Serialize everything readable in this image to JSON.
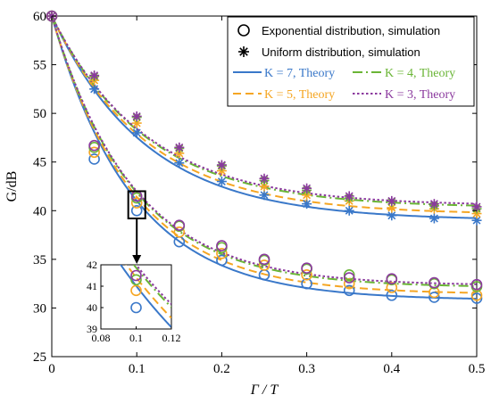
{
  "chart_data": {
    "type": "line",
    "xlabel": "Γ / T",
    "ylabel": "G/dB",
    "xlim": [
      0,
      0.5
    ],
    "ylim": [
      25,
      60
    ],
    "xticks": [
      "0",
      "0.1",
      "0.2",
      "0.3",
      "0.4",
      "0.5"
    ],
    "yticks": [
      "25",
      "30",
      "35",
      "40",
      "45",
      "50",
      "55",
      "60"
    ],
    "grid": false,
    "legend_position": "top-right",
    "colors": {
      "k7": "#3a78c9",
      "k5": "#f5a623",
      "k4": "#6ab536",
      "k3": "#8b3a9e"
    },
    "legend": {
      "exp_label": "Exponential distribution, simulation",
      "uni_label": "Uniform distribution, simulation",
      "k7_label": "K = 7, Theory",
      "k4_label": "K = 4, Theory",
      "k5_label": "K = 5, Theory",
      "k3_label": "K = 3, Theory"
    },
    "theory_series": [
      {
        "key": "k7",
        "distribution": "exponential",
        "style": "solid",
        "start": 60,
        "plateau": 30.8,
        "rate": 10.5
      },
      {
        "key": "k5",
        "distribution": "exponential",
        "style": "dashed",
        "start": 60,
        "plateau": 31.4,
        "rate": 10.5
      },
      {
        "key": "k4",
        "distribution": "exponential",
        "style": "dashdot",
        "start": 60,
        "plateau": 32.1,
        "rate": 10.5
      },
      {
        "key": "k3",
        "distribution": "exponential",
        "style": "dotted",
        "start": 60,
        "plateau": 32.3,
        "rate": 10.5
      },
      {
        "key": "k7",
        "distribution": "uniform",
        "style": "solid",
        "start": 60,
        "plateau": 39.0,
        "rate": 9.0
      },
      {
        "key": "k5",
        "distribution": "uniform",
        "style": "dashed",
        "start": 60,
        "plateau": 39.6,
        "rate": 9.0
      },
      {
        "key": "k4",
        "distribution": "uniform",
        "style": "dashdot",
        "start": 60,
        "plateau": 40.3,
        "rate": 9.0
      },
      {
        "key": "k3",
        "distribution": "uniform",
        "style": "dotted",
        "start": 60,
        "plateau": 40.5,
        "rate": 9.0
      }
    ],
    "simulation_x": [
      0,
      0.05,
      0.1,
      0.15,
      0.2,
      0.25,
      0.3,
      0.35,
      0.4,
      0.45,
      0.5
    ],
    "simulation_series": [
      {
        "key": "k7",
        "distribution": "exponential",
        "marker": "circle",
        "y": [
          60,
          45.3,
          40.0,
          36.8,
          34.9,
          33.4,
          32.5,
          31.8,
          31.3,
          31.1,
          31.0
        ]
      },
      {
        "key": "k5",
        "distribution": "exponential",
        "marker": "circle",
        "y": [
          60,
          46.0,
          40.8,
          37.8,
          35.6,
          34.4,
          33.4,
          32.5,
          32.1,
          31.6,
          31.3
        ]
      },
      {
        "key": "k4",
        "distribution": "exponential",
        "marker": "circle",
        "y": [
          60,
          46.5,
          41.3,
          38.4,
          36.2,
          34.9,
          34.0,
          33.4,
          32.9,
          32.5,
          32.2
        ]
      },
      {
        "key": "k3",
        "distribution": "exponential",
        "marker": "circle",
        "y": [
          60,
          46.7,
          41.5,
          38.5,
          36.4,
          35.0,
          34.1,
          33.1,
          33.0,
          32.6,
          32.4
        ]
      },
      {
        "key": "k7",
        "distribution": "uniform",
        "marker": "star",
        "y": [
          60,
          52.5,
          48.0,
          44.9,
          43.0,
          41.6,
          40.7,
          40.0,
          39.5,
          39.2,
          39.0
        ]
      },
      {
        "key": "k5",
        "distribution": "uniform",
        "marker": "star",
        "y": [
          60,
          53.4,
          49.0,
          45.9,
          44.1,
          42.5,
          41.6,
          41.0,
          40.3,
          40.2,
          39.7
        ]
      },
      {
        "key": "k4",
        "distribution": "uniform",
        "marker": "star",
        "y": [
          60,
          53.8,
          49.6,
          46.4,
          44.6,
          43.1,
          42.1,
          41.3,
          40.9,
          40.5,
          40.2
        ]
      },
      {
        "key": "k3",
        "distribution": "uniform",
        "marker": "star",
        "y": [
          60,
          53.9,
          49.7,
          46.5,
          44.7,
          43.3,
          42.3,
          41.5,
          41.0,
          40.7,
          40.4
        ]
      }
    ],
    "inset": {
      "xlim": [
        0.08,
        0.12
      ],
      "ylim": [
        39,
        42
      ],
      "xticks": [
        "0.08",
        "0.1",
        "0.12"
      ],
      "yticks": [
        "39",
        "40",
        "41",
        "42"
      ],
      "zoom_box": {
        "x": [
          0.09,
          0.11
        ],
        "y": [
          39.2,
          42.0
        ]
      }
    }
  }
}
